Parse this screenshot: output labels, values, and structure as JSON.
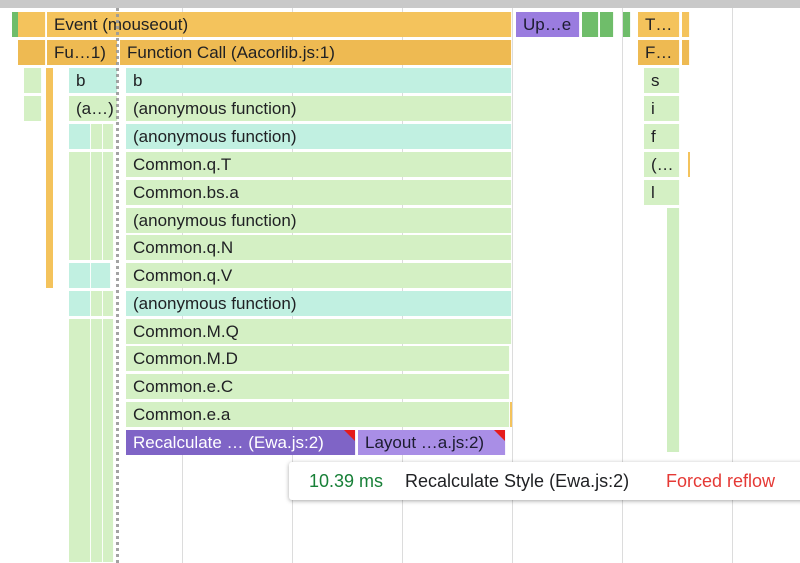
{
  "flame": {
    "row0": {
      "event": "Event (mouseout)",
      "update": "Up…e",
      "t": "T…"
    },
    "row1": {
      "fu": "Fu…1)",
      "function_call": "Function Call (Aacorlib.js:1)",
      "f": "F…"
    },
    "left_col": [
      "b",
      "(a…)"
    ],
    "right_col": [
      "s",
      "i",
      "f",
      "(…",
      "l"
    ],
    "stack": [
      "b",
      "(anonymous function)",
      "(anonymous function)",
      "Common.q.T",
      "Common.bs.a",
      "(anonymous function)",
      "Common.q.N",
      "Common.q.V",
      "(anonymous function)",
      "Common.M.Q",
      "Common.M.D",
      "Common.e.C",
      "Common.e.a"
    ],
    "recalc": "Recalculate … (Ewa.js:2)",
    "layout": "Layout …a.js:2)"
  },
  "tooltip": {
    "duration": "10.39 ms",
    "name": "Recalculate Style (Ewa.js:2)",
    "warning": "Forced reflow"
  },
  "colors": {
    "event": "#f4c35c",
    "script": "#d4f0c4",
    "script_alt": "#c1f0e1",
    "rendering": "#7f64c6",
    "rendering_light": "#a98ee6",
    "duration_text": "#188038",
    "warning_text": "#e53935"
  }
}
